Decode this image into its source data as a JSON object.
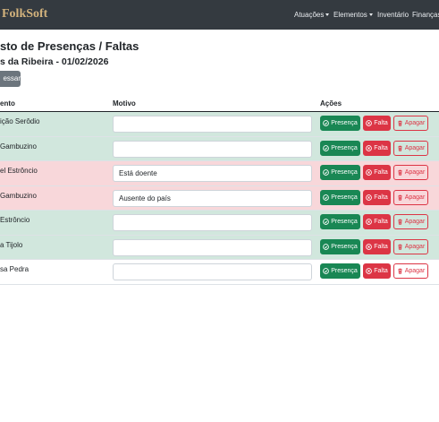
{
  "navbar": {
    "brand": "FolkSoft",
    "items": [
      "Atuações",
      "Elementos",
      "Inventário",
      "Finanças"
    ]
  },
  "header": {
    "title": "sto de Presenças / Faltas",
    "subtitle": "s da Ribeira - 01/02/2026",
    "button": "essar"
  },
  "table": {
    "columns": [
      "ento",
      "Motivo",
      "Ações"
    ],
    "actions": {
      "present": "Presença",
      "absent": "Falta",
      "delete": "Apagar"
    },
    "rows": [
      {
        "name": "ição Serôdio",
        "color": "#d1e7dd"
      },
      {
        "name": "Gambuzino",
        "color": "#d1e7dd"
      },
      {
        "name": "el Estrôncio",
        "reason": "Está doente",
        "color": "#f8d7da"
      },
      {
        "name": " Gambuzino",
        "reason": "Ausente do país",
        "color": "#f8d7da"
      },
      {
        "name": "Estrôncio",
        "color": "#d1e7dd"
      },
      {
        "name": "a Tijolo",
        "color": "#d1e7dd"
      },
      {
        "name": "sa Pedra",
        "color": "#ffffff"
      }
    ]
  }
}
